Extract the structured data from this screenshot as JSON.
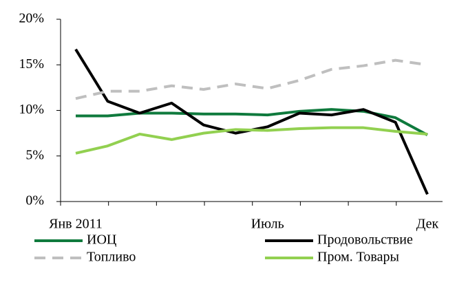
{
  "chart_data": {
    "type": "line",
    "categories": [
      "Янв 2011",
      null,
      null,
      null,
      null,
      null,
      "Июль",
      null,
      null,
      null,
      null,
      "Дек"
    ],
    "series": [
      {
        "name": "ИОЦ",
        "color": "#0f7a3d",
        "dash": false,
        "values": [
          9.4,
          9.4,
          9.7,
          9.7,
          9.6,
          9.6,
          9.5,
          9.9,
          10.1,
          9.9,
          9.2,
          7.3
        ]
      },
      {
        "name": "Продовольствие",
        "color": "#000000",
        "dash": false,
        "values": [
          16.7,
          11.0,
          9.7,
          10.8,
          8.4,
          7.5,
          8.2,
          9.7,
          9.5,
          10.1,
          8.7,
          0.8
        ]
      },
      {
        "name": "Топливо",
        "color": "#bfbfbf",
        "dash": true,
        "values": [
          11.3,
          12.1,
          12.1,
          12.7,
          12.3,
          12.9,
          12.4,
          13.3,
          14.5,
          14.9,
          15.5,
          15.0
        ]
      },
      {
        "name": "Пром. Товары",
        "color": "#92d050",
        "dash": false,
        "values": [
          5.3,
          6.1,
          7.4,
          6.8,
          7.5,
          7.9,
          7.8,
          8.0,
          8.1,
          8.1,
          7.7,
          7.4
        ]
      }
    ],
    "ylim": [
      0,
      20
    ],
    "yticks": [
      {
        "value": 0,
        "label": "0%"
      },
      {
        "value": 5,
        "label": "5%"
      },
      {
        "value": 10,
        "label": "10%"
      },
      {
        "value": 15,
        "label": "15%"
      },
      {
        "value": 20,
        "label": "20%"
      }
    ],
    "grid": false
  }
}
